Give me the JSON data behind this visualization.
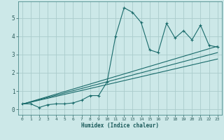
{
  "xlabel": "Humidex (Indice chaleur)",
  "bg_color": "#cce8e8",
  "grid_color": "#aacccc",
  "line_color": "#1a6b6b",
  "xlim": [
    -0.5,
    23.5
  ],
  "ylim": [
    -0.3,
    5.9
  ],
  "xticks": [
    0,
    1,
    2,
    3,
    4,
    5,
    6,
    7,
    8,
    9,
    10,
    11,
    12,
    13,
    14,
    15,
    16,
    17,
    18,
    19,
    20,
    21,
    22,
    23
  ],
  "yticks": [
    0,
    1,
    2,
    3,
    4,
    5
  ],
  "line1_x": [
    0,
    1,
    2,
    3,
    4,
    5,
    6,
    7,
    8,
    9,
    10,
    11,
    12,
    13,
    14,
    15,
    16,
    17,
    18,
    19,
    20,
    21,
    22,
    23
  ],
  "line1_y": [
    0.3,
    0.3,
    0.1,
    0.25,
    0.3,
    0.3,
    0.35,
    0.5,
    0.75,
    0.75,
    1.5,
    4.0,
    5.55,
    5.3,
    4.75,
    3.25,
    3.1,
    4.7,
    3.9,
    4.3,
    3.8,
    4.6,
    3.5,
    3.4
  ],
  "line2_x": [
    0,
    23
  ],
  "line2_y": [
    0.28,
    3.45
  ],
  "line3_x": [
    0,
    23
  ],
  "line3_y": [
    0.28,
    2.75
  ],
  "line4_x": [
    0,
    23
  ],
  "line4_y": [
    0.28,
    3.1
  ]
}
